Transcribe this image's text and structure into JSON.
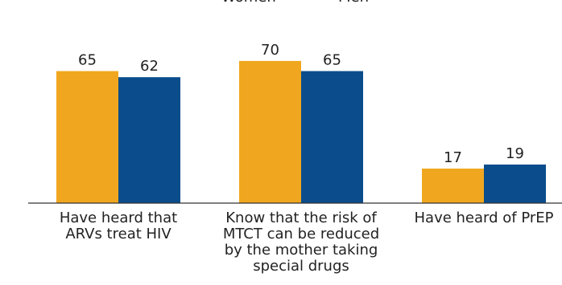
{
  "chart_data": {
    "type": "bar",
    "categories": [
      "Have heard that\nARVs treat HIV",
      "Know that the risk of\nMTCT can be reduced\nby the mother taking\nspecial drugs",
      "Have heard of PrEP"
    ],
    "series": [
      {
        "name": "Women",
        "color": "#f0a71f",
        "values": [
          65,
          70,
          17
        ]
      },
      {
        "name": "Men",
        "color": "#0b4d8c",
        "values": [
          62,
          65,
          19
        ]
      }
    ],
    "ylim": [
      0,
      100
    ],
    "legend": "top"
  }
}
